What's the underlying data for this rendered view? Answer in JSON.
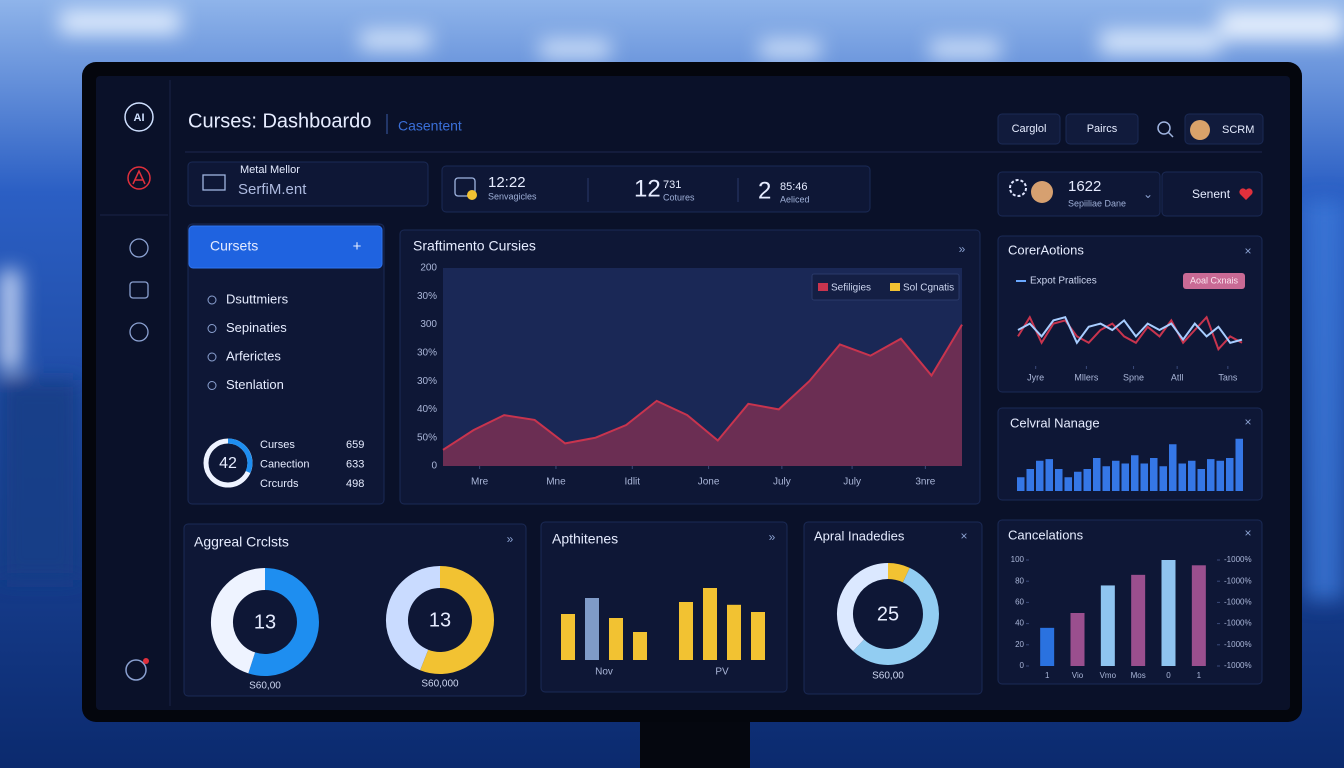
{
  "header": {
    "logo": "AI",
    "title": "Curses: Dashboardo",
    "subtitle": "Casentent",
    "buttons": [
      "Carglol",
      "Paircs"
    ],
    "user": "SCRM"
  },
  "profile_card": {
    "label": "Metal Mellor",
    "value": "SerfiM.ent"
  },
  "stats": [
    {
      "value": "12:22",
      "label": "Senvagicles"
    },
    {
      "value": 12,
      "sub": 731,
      "label": "Cotures"
    },
    {
      "value": 2,
      "sub": "85:46",
      "label": "Aeliced"
    }
  ],
  "status_card": {
    "value": 1622,
    "label": "Sepiiliae Dane",
    "button": "Senent"
  },
  "side_panel": {
    "button": "Cursets",
    "button_icon": "+",
    "items": [
      "Dsuttmiers",
      "Sepinaties",
      "Arferictes",
      "Stenlation"
    ],
    "donut_label": 42,
    "rows": [
      {
        "name": "Curses",
        "value": 659
      },
      {
        "name": "Canection",
        "value": 633
      },
      {
        "name": "Crcurds",
        "value": 498
      }
    ]
  },
  "main_chart": {
    "type": "area",
    "title": "Sraftimento Cursies",
    "legend": [
      {
        "name": "Sefiligies",
        "color": "#c8344e"
      },
      {
        "name": "Sol Cgnatis",
        "color": "#f2c232"
      }
    ],
    "x": [
      0,
      1,
      2,
      3,
      4,
      5,
      6,
      7,
      8,
      9,
      10,
      11,
      12,
      13,
      14,
      15,
      16,
      17
    ],
    "series": [
      {
        "name": "Sefiligies",
        "color": "#c8344e",
        "values": [
          5.7,
          12.7,
          18,
          16.3,
          8,
          10,
          14.5,
          23,
          18,
          9,
          22,
          20,
          30,
          43,
          39,
          45,
          32,
          50
        ]
      }
    ],
    "xlim": [
      0,
      17
    ],
    "xticks": [
      {
        "value": 1.2,
        "label": "Mre"
      },
      {
        "value": 3.7,
        "label": "Mne"
      },
      {
        "value": 6.2,
        "label": "Idlit"
      },
      {
        "value": 8.7,
        "label": "Jone"
      },
      {
        "value": 11.1,
        "label": "July"
      },
      {
        "value": 13.4,
        "label": "July"
      },
      {
        "value": 15.8,
        "label": "3nre"
      }
    ],
    "ylim": [
      0,
      70
    ],
    "yticks": [
      0,
      {
        "value": 10,
        "label": "50%"
      },
      {
        "value": 20,
        "label": "40%"
      },
      {
        "value": 30,
        "label": "30%"
      },
      {
        "value": 40,
        "label": "30%"
      },
      {
        "value": 50,
        "label": "300"
      },
      {
        "value": 60,
        "label": "30%"
      },
      {
        "value": 70,
        "label": "200"
      }
    ],
    "grid": false
  },
  "core_actions": {
    "type": "line",
    "title": "CorerAotions",
    "legend": "Expot Pratlices",
    "badge": "Aoal Cxnais",
    "x": [
      0,
      1,
      2,
      3,
      4,
      5,
      6,
      7,
      8,
      9,
      10,
      11,
      12,
      13,
      14,
      15,
      16,
      17,
      18,
      19
    ],
    "series": [
      {
        "color": "#c8344e",
        "values": [
          4,
          7,
          3,
          6,
          6.5,
          4,
          3,
          5,
          6,
          4,
          3,
          5.5,
          4,
          6.5,
          3,
          5,
          7,
          2,
          4,
          3
        ]
      },
      {
        "color": "#a8cdff",
        "values": [
          5,
          6,
          4,
          6.5,
          7,
          3,
          5.5,
          6,
          5,
          6.5,
          4,
          6,
          5,
          6,
          3.5,
          6,
          4,
          5.5,
          3,
          3.5
        ]
      }
    ],
    "xlim": [
      0,
      19
    ],
    "ylim": [
      0,
      10
    ],
    "xticks": [
      {
        "value": 1.5,
        "label": "Jyre"
      },
      {
        "value": 5.8,
        "label": "Mllers"
      },
      {
        "value": 9.8,
        "label": "Spne"
      },
      {
        "value": 13.5,
        "label": "Atll"
      },
      {
        "value": 17.8,
        "label": "Tans"
      }
    ]
  },
  "central_manage": {
    "type": "bar",
    "title": "Celvral Nanage",
    "color": "#3577e6",
    "ylim": [
      0,
      10
    ],
    "values": [
      2.5,
      4,
      5.5,
      5.8,
      4,
      2.5,
      3.5,
      4,
      6,
      4.5,
      5.5,
      5,
      6.5,
      5,
      6,
      4.5,
      8.5,
      5,
      5.5,
      4,
      5.8,
      5.5,
      6,
      9.5
    ]
  },
  "aggregate": {
    "title": "Aggreal Crclsts",
    "donuts": [
      {
        "type": "donut",
        "center": 13,
        "caption": "S60,00",
        "values": [
          55,
          45
        ],
        "colors": [
          "#1e8ef0",
          "#eef3ff"
        ]
      },
      {
        "type": "donut",
        "center": 13,
        "caption": "S60,000",
        "values": [
          56,
          44
        ],
        "colors": [
          "#f2c232",
          "#c9dbff"
        ]
      }
    ]
  },
  "apthitenes": {
    "type": "grouped-bar",
    "title": "Apthitenes",
    "categories": [
      "Nov",
      "PV"
    ],
    "ylim": [
      0,
      10
    ],
    "values": [
      [
        5.75,
        7.75,
        5.25,
        3.5
      ],
      [
        7.25,
        9,
        6.9,
        6
      ]
    ],
    "colors": [
      [
        "#f2c232",
        "#7f9bc8",
        "#f2c232",
        "#f2c232"
      ],
      [
        "#f2c232",
        "#f2c232",
        "#f2c232",
        "#f2c232"
      ]
    ]
  },
  "apral": {
    "type": "donut",
    "title": "Apral Inadedies",
    "center": 25,
    "caption": "S60,00",
    "values": [
      7,
      55,
      38
    ],
    "colors": [
      "#f2c232",
      "#92cdf2",
      "#dbe8ff"
    ]
  },
  "cancelations": {
    "type": "bar",
    "title": "Cancelations",
    "categories": [
      "1",
      "Vio",
      "Vmo",
      "Mos",
      "0",
      "1"
    ],
    "values": [
      36,
      50,
      76,
      86,
      100,
      95
    ],
    "colors": [
      "#2a72e0",
      "#9a4f8e",
      "#8fc4f0",
      "#9a4f8e",
      "#8fc4f0",
      "#9a4f8e"
    ],
    "ylim": [
      0,
      100
    ],
    "yticks": [
      0,
      20,
      40,
      60,
      80,
      100
    ],
    "y2lim": [
      0,
      100
    ],
    "y2ticks": [
      {
        "value": 0,
        "label": "-1000%"
      },
      {
        "value": 20,
        "label": "-1000%"
      },
      {
        "value": 40,
        "label": "-1000%"
      },
      {
        "value": 60,
        "label": "-1000%"
      },
      {
        "value": 80,
        "label": "-1000%"
      },
      {
        "value": 100,
        "label": "-1000%"
      }
    ]
  }
}
